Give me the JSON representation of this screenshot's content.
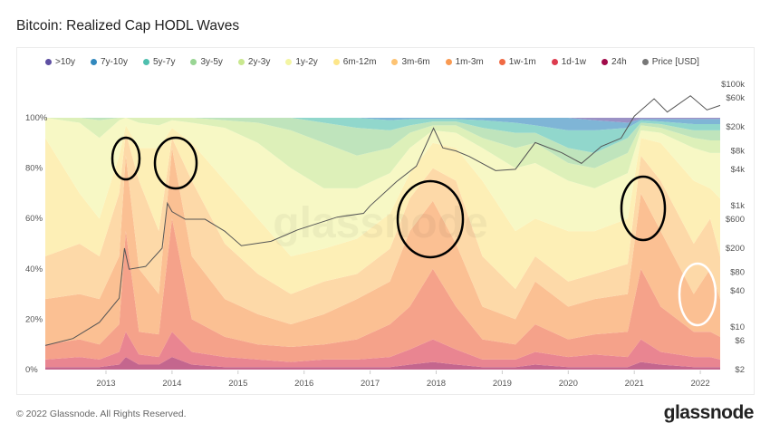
{
  "title": "Bitcoin: Realized Cap HODL Waves",
  "footer": "© 2022 Glassnode. All Rights Reserved.",
  "logo": "glassnode",
  "watermark": "glassnode",
  "chart_data": {
    "type": "area",
    "stacked": true,
    "title": "Bitcoin: Realized Cap HODL Waves",
    "legend_position": "top",
    "grid": false,
    "x_ticks": [
      "2013",
      "2014",
      "2015",
      "2016",
      "2017",
      "2018",
      "2019",
      "2020",
      "2021",
      "2022"
    ],
    "y_left_ticks": [
      "0%",
      "20%",
      "40%",
      "60%",
      "80%",
      "100%"
    ],
    "y_left_range": [
      0,
      100
    ],
    "y_right_scale": "log",
    "y_right_ticks": [
      "$2",
      "$6",
      "$10",
      "$40",
      "$80",
      "$200",
      "$600",
      "$1k",
      "$4k",
      "$8k",
      "$20k",
      "$60k",
      "$100k"
    ],
    "y_right_tick_values": [
      2,
      6,
      10,
      40,
      80,
      200,
      600,
      1000,
      4000,
      8000,
      20000,
      60000,
      100000
    ],
    "y_right_range": [
      2,
      100000
    ],
    "x": [
      2012.1,
      2012.6,
      2012.9,
      2013.2,
      2013.3,
      2013.5,
      2013.8,
      2014.0,
      2014.3,
      2014.8,
      2015.3,
      2015.8,
      2016.3,
      2016.8,
      2017.3,
      2017.6,
      2017.95,
      2018.3,
      2018.7,
      2019.2,
      2019.5,
      2020.0,
      2020.4,
      2020.9,
      2021.1,
      2021.4,
      2021.9,
      2022.15,
      2022.3
    ],
    "series": [
      {
        "name": ">10y",
        "color": "#5e4fa2",
        "values": [
          0,
          0,
          0,
          0,
          0,
          0,
          0,
          0,
          0,
          0,
          0,
          0,
          0,
          0,
          0,
          0,
          0,
          0,
          0,
          0,
          0,
          0,
          1,
          2,
          0.5,
          0.5,
          0.5,
          0.5,
          0.5
        ]
      },
      {
        "name": "7y-10y",
        "color": "#3288bd",
        "values": [
          0,
          0,
          0,
          0,
          0,
          0,
          0,
          0,
          0,
          0,
          0,
          0,
          0,
          0,
          1,
          0.5,
          0.5,
          0.5,
          1,
          2,
          3,
          5,
          4,
          2,
          0.5,
          1,
          2,
          2,
          2
        ]
      },
      {
        "name": "5y-7y",
        "color": "#4fbfae",
        "values": [
          0,
          0,
          0,
          0,
          0,
          0,
          0,
          0,
          0,
          0,
          0,
          0,
          2,
          4,
          4,
          2.5,
          1,
          1,
          3,
          4,
          3,
          7,
          9,
          4,
          1,
          1,
          2.5,
          2.5,
          2.5
        ]
      },
      {
        "name": "3y-5y",
        "color": "#99d594",
        "values": [
          0,
          0,
          1,
          0,
          0,
          0,
          0,
          0,
          0,
          1,
          2,
          5,
          8,
          11,
          7,
          3,
          1.5,
          1.5,
          4,
          6,
          4,
          6,
          6,
          6,
          1,
          1.5,
          3,
          4,
          4
        ]
      },
      {
        "name": "2y-3y",
        "color": "#c9e88f",
        "values": [
          0,
          2,
          7,
          1,
          0,
          2,
          3,
          1,
          2,
          3,
          8,
          15,
          18,
          13,
          10,
          6,
          2,
          3,
          4,
          8,
          8,
          7,
          8,
          8,
          2,
          2,
          4,
          5,
          5
        ]
      },
      {
        "name": "1y-2y",
        "color": "#f3f5a3",
        "values": [
          8,
          28,
          32,
          14,
          3,
          10,
          9,
          3,
          8,
          21,
          30,
          35,
          24,
          20,
          16,
          10,
          5,
          6,
          13,
          25,
          22,
          20,
          17,
          18,
          3,
          4,
          13,
          14,
          18
        ]
      },
      {
        "name": "6m-12m",
        "color": "#fde68a",
        "values": [
          47,
          20,
          15,
          15,
          3,
          13,
          33,
          4,
          15,
          25,
          22,
          15,
          13,
          14,
          14,
          10,
          10,
          13,
          30,
          23,
          15,
          20,
          17,
          18,
          7,
          15,
          25,
          12,
          23
        ]
      },
      {
        "name": "3m-6m",
        "color": "#fdc373",
        "values": [
          17,
          20,
          17,
          25,
          9,
          35,
          25,
          4,
          30,
          22,
          16,
          12,
          13,
          10,
          13,
          13,
          13,
          25,
          20,
          12,
          10,
          10,
          10,
          12,
          15,
          20,
          20,
          20,
          17
        ]
      },
      {
        "name": "1m-3m",
        "color": "#f99a52",
        "values": [
          18,
          18,
          18,
          27,
          30,
          25,
          16,
          28,
          25,
          15,
          12,
          9,
          12,
          16,
          17,
          30,
          27,
          25,
          13,
          10,
          17,
          13,
          14,
          15,
          30,
          30,
          15,
          25,
          15
        ]
      },
      {
        "name": "1w-1m",
        "color": "#f06a44",
        "values": [
          6,
          7,
          6,
          11,
          40,
          9,
          9,
          45,
          13,
          8,
          6,
          6,
          6,
          8,
          13,
          17,
          28,
          17,
          8,
          6,
          11,
          7,
          8,
          10,
          28,
          18,
          10,
          10,
          9
        ]
      },
      {
        "name": "1d-1w",
        "color": "#dd3c4f",
        "values": [
          3,
          4,
          3,
          5,
          10,
          4,
          3,
          10,
          5,
          4,
          3,
          2,
          3,
          3,
          4,
          6,
          9,
          6,
          3,
          3,
          5,
          4,
          5,
          4,
          9,
          5,
          4,
          4,
          3
        ]
      },
      {
        "name": "24h",
        "color": "#a10a4a",
        "values": [
          1,
          1,
          1,
          2,
          5,
          2,
          2,
          5,
          2,
          1,
          1,
          1,
          1,
          1,
          1,
          2,
          3,
          2,
          1,
          1,
          2,
          1,
          1,
          1,
          3,
          2,
          1,
          1,
          1
        ]
      }
    ],
    "price": {
      "name": "Price [USD]",
      "color": "#777777",
      "x": [
        2012.1,
        2012.5,
        2012.9,
        2013.2,
        2013.28,
        2013.35,
        2013.6,
        2013.85,
        2013.93,
        2014.0,
        2014.2,
        2014.5,
        2014.8,
        2015.05,
        2015.5,
        2015.9,
        2016.5,
        2016.9,
        2017.0,
        2017.4,
        2017.7,
        2017.96,
        2018.1,
        2018.3,
        2018.5,
        2018.9,
        2019.2,
        2019.5,
        2019.9,
        2020.2,
        2020.5,
        2020.8,
        2021.0,
        2021.3,
        2021.5,
        2021.85,
        2022.1,
        2022.3
      ],
      "y": [
        5,
        6.5,
        12,
        30,
        200,
        90,
        100,
        200,
        1100,
        800,
        600,
        600,
        380,
        220,
        260,
        400,
        650,
        750,
        1000,
        2500,
        4500,
        19000,
        9000,
        8000,
        6500,
        3800,
        4000,
        11000,
        7500,
        5000,
        9500,
        13000,
        30000,
        58000,
        35000,
        65000,
        38000,
        45000
      ]
    }
  }
}
